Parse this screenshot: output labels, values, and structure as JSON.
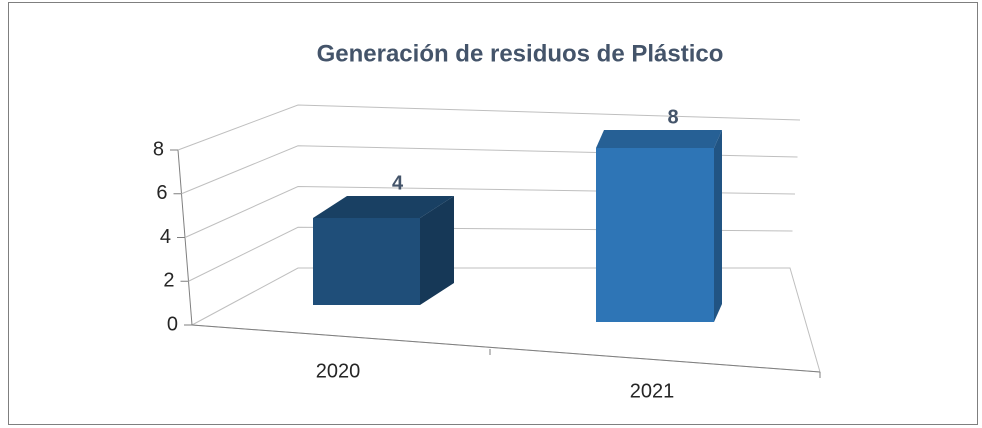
{
  "chart_data": {
    "type": "bar3d",
    "title": "Generación de residuos de Plástico",
    "categories": [
      "2020",
      "2021"
    ],
    "values": [
      4,
      8
    ],
    "colors": [
      "#1f4e79",
      "#2e75b6"
    ],
    "ylim": [
      0,
      8
    ],
    "yticks": [
      0,
      2,
      4,
      6,
      8
    ],
    "grid": true
  }
}
